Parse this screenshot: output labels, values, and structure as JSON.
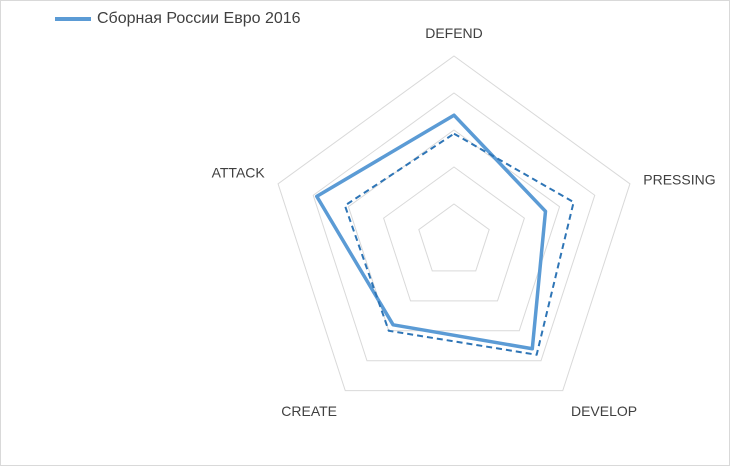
{
  "chart_data": {
    "type": "radar",
    "axes": [
      "DEFEND",
      "PRESSING",
      "DEVELOP",
      "CREATE",
      "ATTACK"
    ],
    "rmax": 5,
    "grid_levels": [
      1,
      2,
      3,
      4,
      5
    ],
    "grid": true,
    "legend_position": "top-left",
    "series": [
      {
        "name": "Сборная России Евро 2016",
        "values": [
          3.4,
          2.6,
          3.6,
          2.8,
          3.9
        ],
        "color": "#5b9bd5",
        "style": "solid"
      },
      {
        "values": [
          2.9,
          3.4,
          3.8,
          3.0,
          3.1
        ],
        "color": "#2e75b6",
        "style": "dashed"
      }
    ]
  }
}
